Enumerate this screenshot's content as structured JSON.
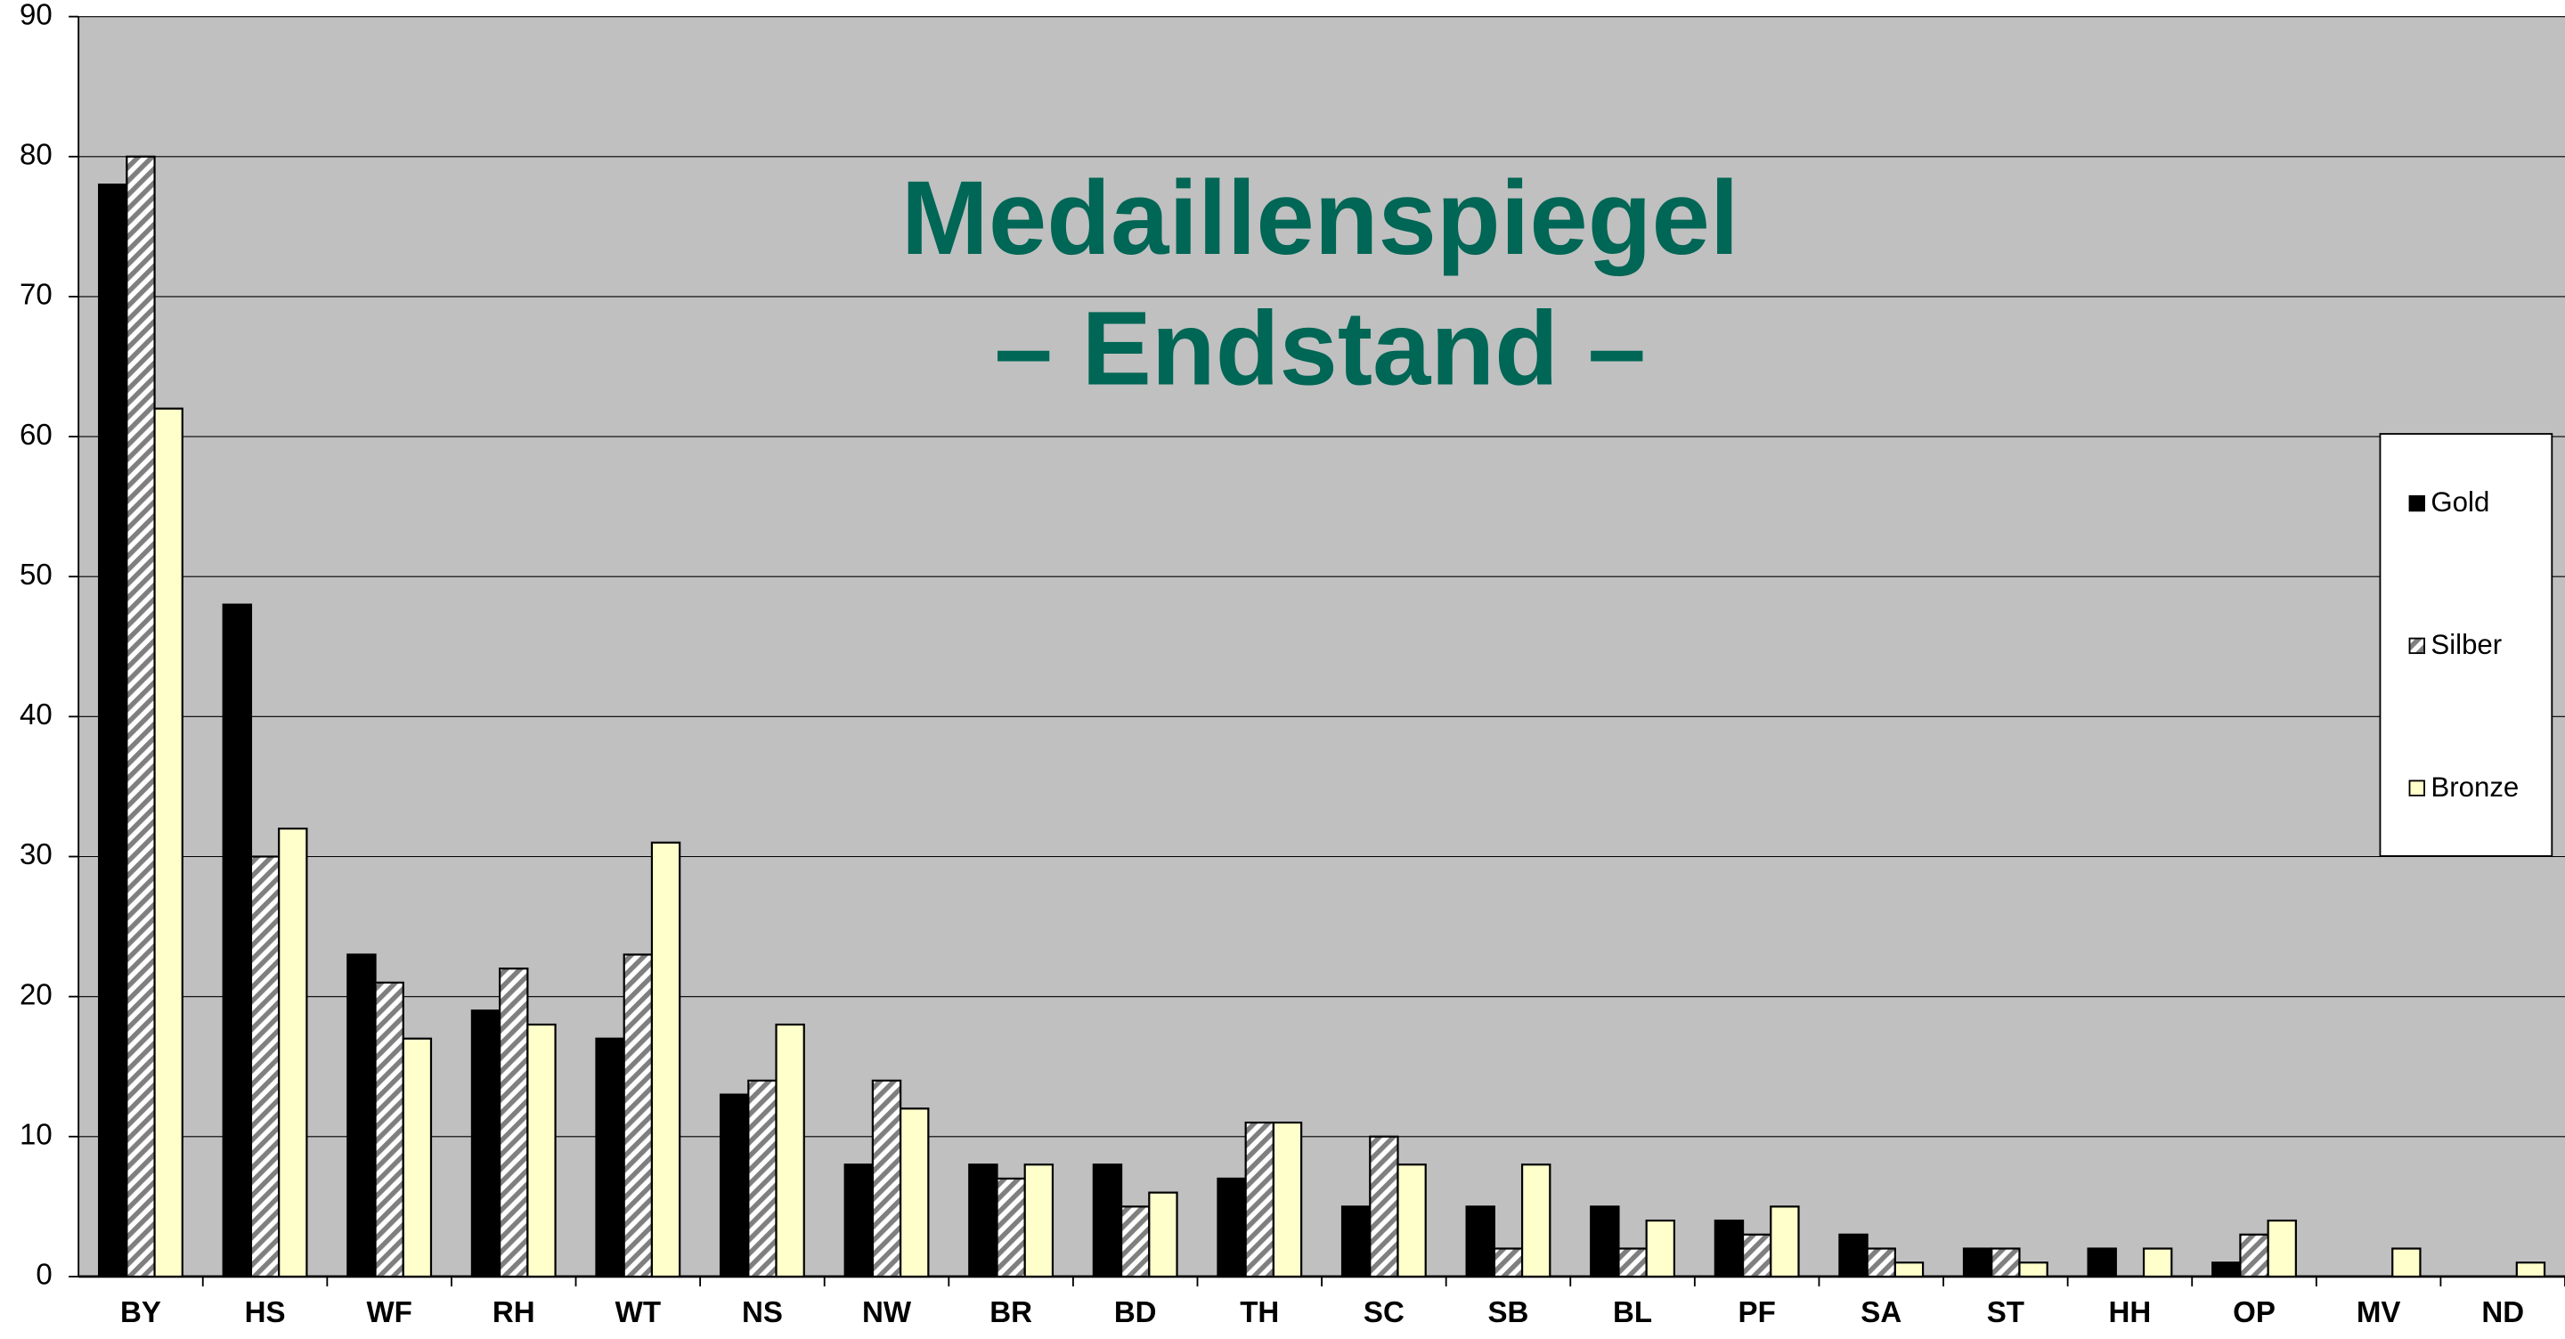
{
  "chart_data": {
    "type": "bar",
    "title": "Medaillenspiegel",
    "subtitle": "– Endstand –",
    "categories": [
      "BY",
      "HS",
      "WF",
      "RH",
      "WT",
      "NS",
      "NW",
      "BR",
      "BD",
      "TH",
      "SC",
      "SB",
      "BL",
      "PF",
      "SA",
      "ST",
      "HH",
      "OP",
      "MV",
      "ND"
    ],
    "series": [
      {
        "name": "Gold",
        "color": "#000000",
        "values": [
          78,
          48,
          23,
          19,
          17,
          13,
          8,
          8,
          8,
          7,
          5,
          5,
          5,
          4,
          3,
          2,
          2,
          1,
          0,
          0
        ]
      },
      {
        "name": "Silber",
        "color": "#a6a6a6",
        "pattern": "hatch",
        "values": [
          80,
          30,
          21,
          22,
          23,
          14,
          14,
          7,
          5,
          11,
          10,
          2,
          2,
          3,
          2,
          2,
          0,
          3,
          0,
          0
        ]
      },
      {
        "name": "Bronze",
        "color": "#ffffcc",
        "values": [
          62,
          32,
          17,
          18,
          31,
          18,
          12,
          8,
          6,
          11,
          8,
          8,
          4,
          5,
          1,
          1,
          2,
          4,
          2,
          1
        ]
      }
    ],
    "ylim": [
      0,
      90
    ],
    "yticks": [
      0,
      10,
      20,
      30,
      40,
      50,
      60,
      70,
      80,
      90
    ],
    "grid": true,
    "legend": "right"
  }
}
